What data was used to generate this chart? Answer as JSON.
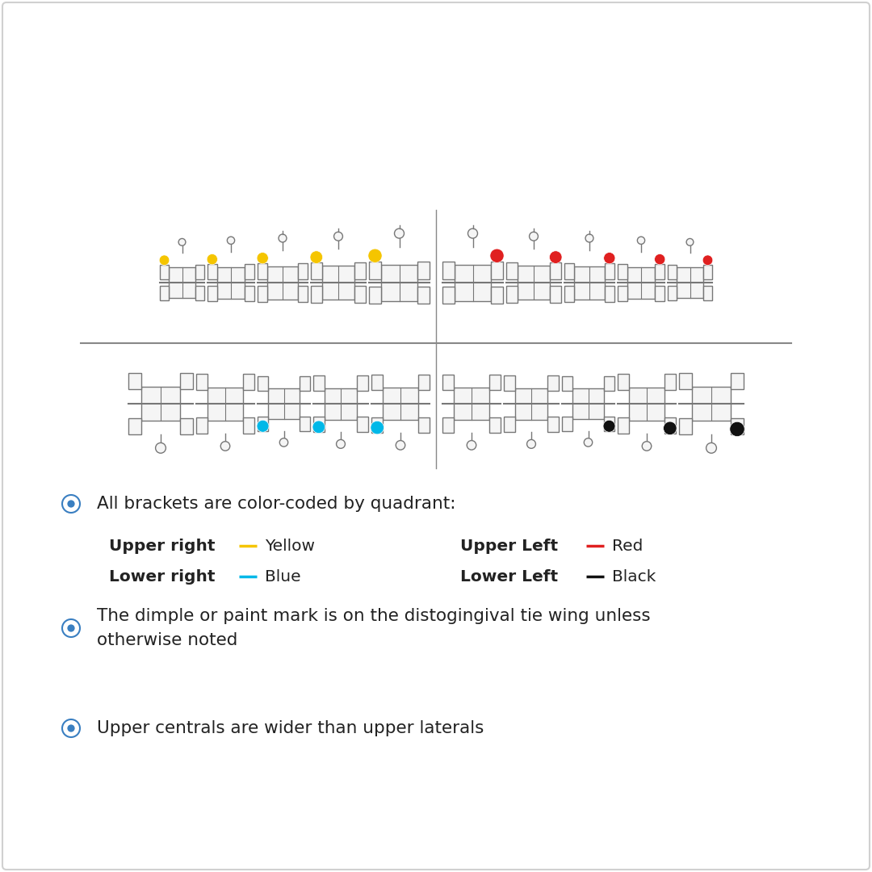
{
  "background_color": "#ffffff",
  "border_color": "#d0d0d0",
  "bullet_color": "#3a7fc1",
  "bracket_line_color": "#777777",
  "bracket_fill_color": "#f5f5f5",
  "quadrant_colors": {
    "upper_right": "#f5c500",
    "upper_left": "#e02020",
    "lower_right": "#00b8e8",
    "lower_left": "#111111"
  },
  "bullet_texts": [
    "All brackets are color-coded by quadrant:",
    "The dimple or paint mark is on the distogingival tie wing unless\notherwise noted",
    "Upper centrals are wider than upper laterals"
  ],
  "upper_right_label": "Upper right",
  "upper_right_color_name": "Yellow",
  "upper_left_label": "Upper Left",
  "upper_left_color_name": "Red",
  "lower_right_label": "Lower right",
  "lower_right_color_name": "Blue",
  "lower_left_label": "Lower Left",
  "lower_left_color_name": "Black"
}
